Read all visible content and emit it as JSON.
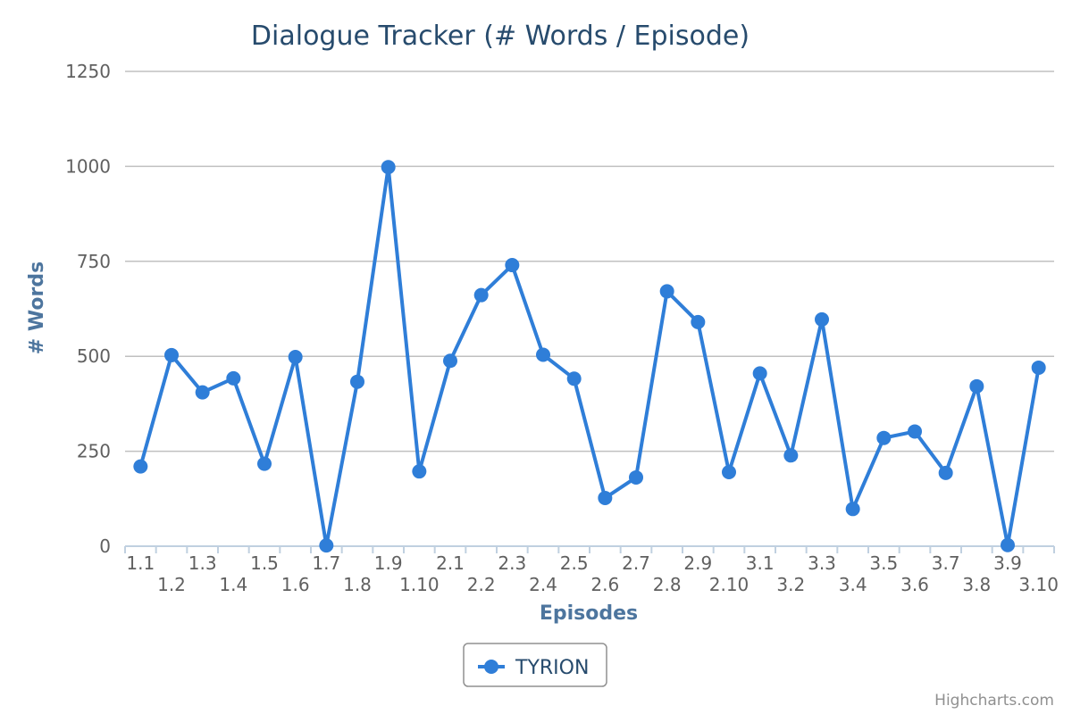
{
  "chart_data": {
    "type": "line",
    "title": "Dialogue Tracker (# Words / Episode)",
    "xlabel": "Episodes",
    "ylabel": "# Words",
    "ylim": [
      0,
      1250
    ],
    "yticks": [
      0,
      250,
      500,
      750,
      1000,
      1250
    ],
    "grid": true,
    "legend_position": "bottom-center",
    "categories": [
      "1.1",
      "1.2",
      "1.3",
      "1.4",
      "1.5",
      "1.6",
      "1.7",
      "1.8",
      "1.9",
      "1.10",
      "2.1",
      "2.2",
      "2.3",
      "2.4",
      "2.5",
      "2.6",
      "2.7",
      "2.8",
      "2.9",
      "2.10",
      "3.1",
      "3.2",
      "3.3",
      "3.4",
      "3.5",
      "3.6",
      "3.7",
      "3.8",
      "3.9",
      "3.10"
    ],
    "series": [
      {
        "name": "TYRION",
        "color": "#2f7ed8",
        "values": [
          210,
          503,
          405,
          442,
          217,
          498,
          2,
          433,
          998,
          197,
          488,
          661,
          740,
          504,
          441,
          127,
          181,
          671,
          590,
          195,
          455,
          239,
          597,
          98,
          285,
          302,
          193,
          421,
          3,
          470
        ]
      }
    ],
    "credits": "Highcharts.com"
  }
}
